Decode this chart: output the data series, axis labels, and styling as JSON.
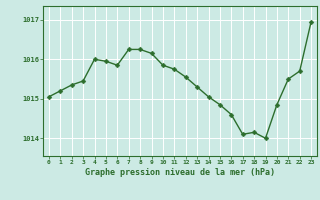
{
  "x": [
    0,
    1,
    2,
    3,
    4,
    5,
    6,
    7,
    8,
    9,
    10,
    11,
    12,
    13,
    14,
    15,
    16,
    17,
    18,
    19,
    20,
    21,
    22,
    23
  ],
  "y": [
    1015.05,
    1015.2,
    1015.35,
    1015.45,
    1016.0,
    1015.95,
    1015.85,
    1016.25,
    1016.25,
    1016.15,
    1015.85,
    1015.75,
    1015.55,
    1015.3,
    1015.05,
    1014.85,
    1014.6,
    1014.1,
    1014.15,
    1014.0,
    1014.85,
    1015.5,
    1015.7,
    1016.95
  ],
  "line_color": "#2d6e2d",
  "marker_color": "#2d6e2d",
  "bg_color": "#cceae4",
  "grid_color": "#ffffff",
  "axis_label_color": "#2d6e2d",
  "tick_color": "#2d6e2d",
  "xlabel": "Graphe pression niveau de la mer (hPa)",
  "yticks": [
    1014,
    1015,
    1016,
    1017
  ],
  "ylim": [
    1013.55,
    1017.35
  ],
  "xlim": [
    -0.5,
    23.5
  ],
  "xticks": [
    0,
    1,
    2,
    3,
    4,
    5,
    6,
    7,
    8,
    9,
    10,
    11,
    12,
    13,
    14,
    15,
    16,
    17,
    18,
    19,
    20,
    21,
    22,
    23
  ],
  "xtick_labels": [
    "0",
    "1",
    "2",
    "3",
    "4",
    "5",
    "6",
    "7",
    "8",
    "9",
    "10",
    "11",
    "12",
    "13",
    "14",
    "15",
    "16",
    "17",
    "18",
    "19",
    "20",
    "21",
    "22",
    "23"
  ],
  "marker_size": 2.5,
  "line_width": 1.0,
  "spine_color": "#2d6e2d"
}
